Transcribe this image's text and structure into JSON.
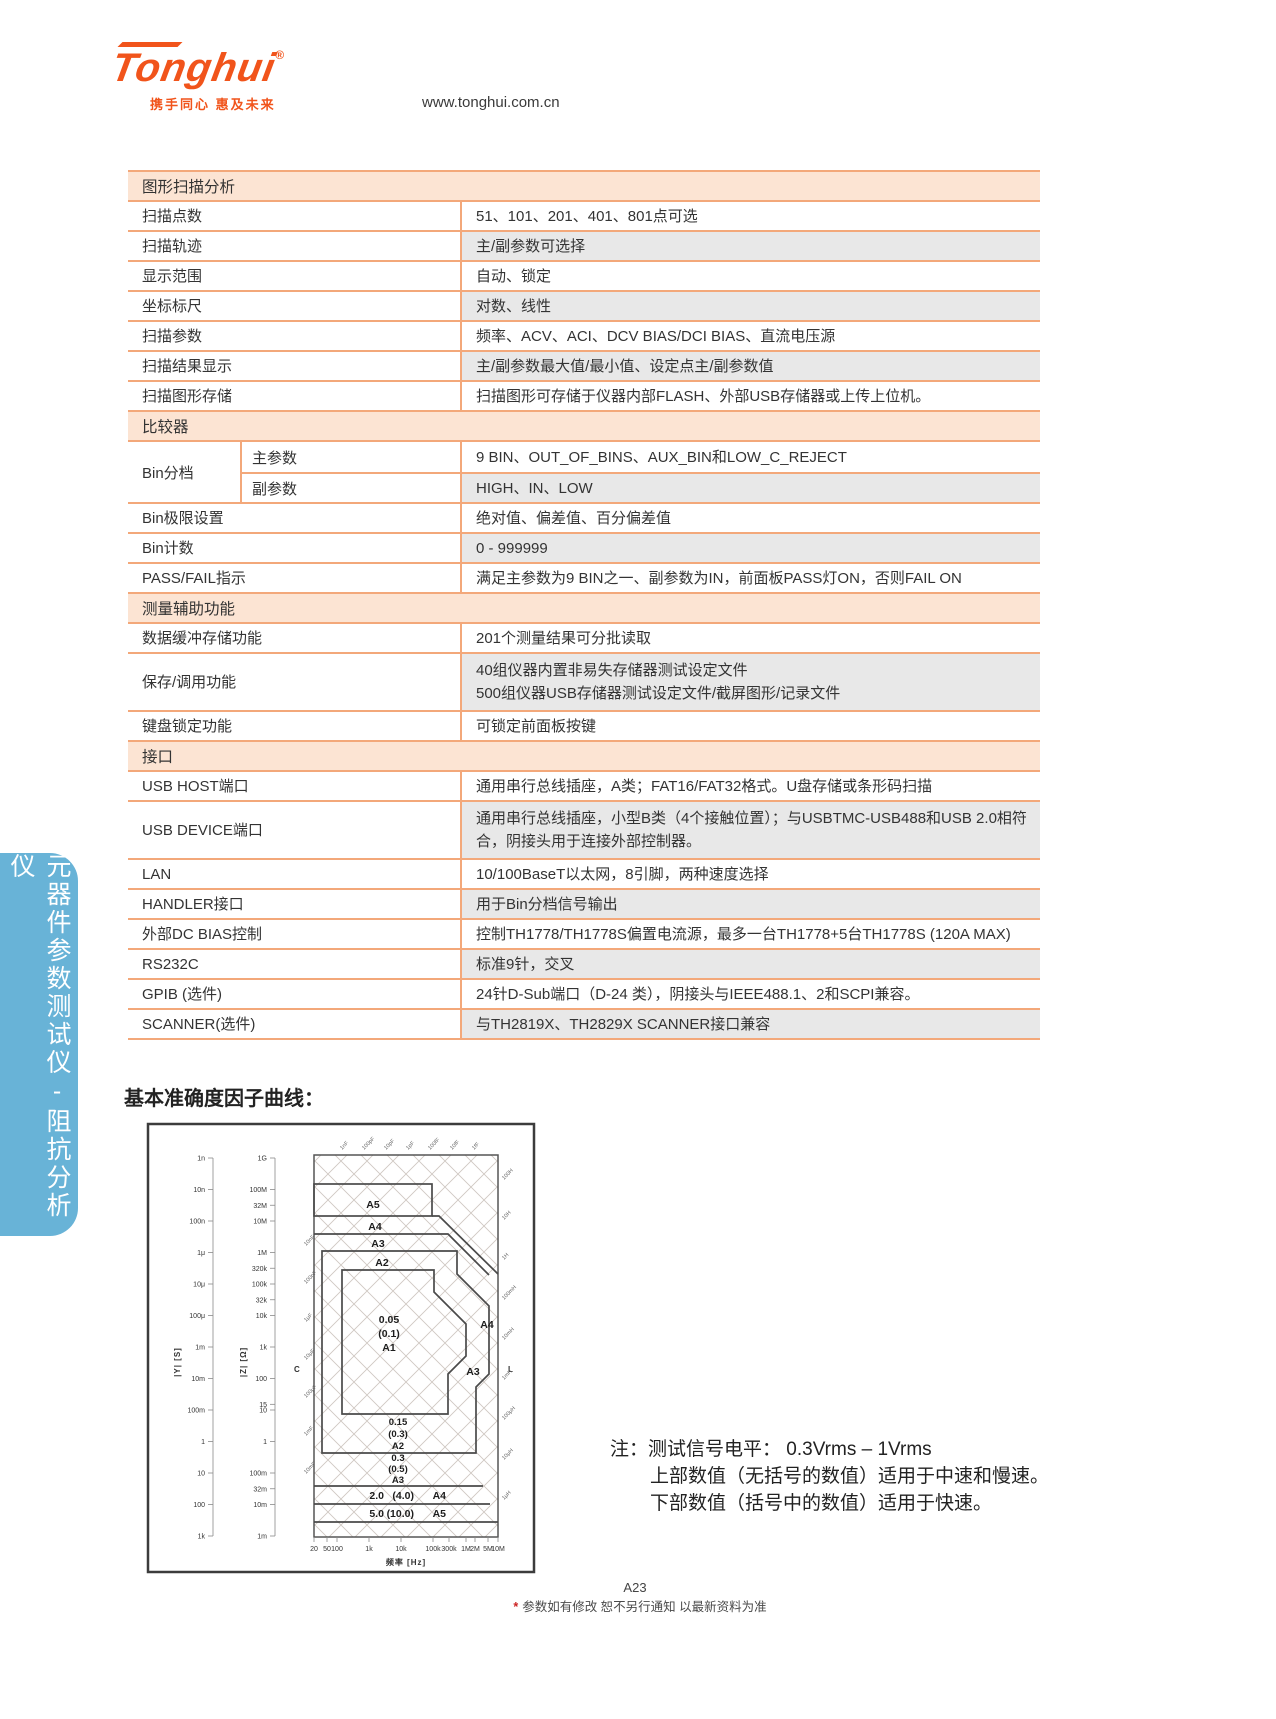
{
  "header": {
    "logo_text": "Tonghui",
    "logo_registered": "®",
    "logo_tagline": "携手同心 惠及未来",
    "website": "www.tonghui.com.cn"
  },
  "sidebar": {
    "vertical_label": "元器件参数测试仪-阻抗分析仪"
  },
  "spec_table": {
    "sections": [
      {
        "title": "图形扫描分析",
        "rows": [
          {
            "label": "扫描点数",
            "value": "51、101、201、401、801点可选"
          },
          {
            "label": "扫描轨迹",
            "value": "主/副参数可选择"
          },
          {
            "label": "显示范围",
            "value": "自动、锁定"
          },
          {
            "label": "坐标标尺",
            "value": "对数、线性"
          },
          {
            "label": "扫描参数",
            "value": "频率、ACV、ACI、DCV BIAS/DCI BIAS、直流电压源"
          },
          {
            "label": "扫描结果显示",
            "value": "主/副参数最大值/最小值、设定点主/副参数值"
          },
          {
            "label": "扫描图形存储",
            "value": "扫描图形可存储于仪器内部FLASH、外部USB存储器或上传上位机。"
          }
        ]
      },
      {
        "title": "比较器",
        "bin_label": "Bin分档",
        "bin_rows": [
          {
            "label": "主参数",
            "value": "9 BIN、OUT_OF_BINS、AUX_BIN和LOW_C_REJECT"
          },
          {
            "label": "副参数",
            "value": "HIGH、IN、LOW"
          }
        ],
        "rows": [
          {
            "label": "Bin极限设置",
            "value": "绝对值、偏差值、百分偏差值"
          },
          {
            "label": "Bin计数",
            "value": "0 - 999999"
          },
          {
            "label": "PASS/FAIL指示",
            "value": "满足主参数为9 BIN之一、副参数为IN，前面板PASS灯ON，否则FAIL ON"
          }
        ]
      },
      {
        "title": "测量辅助功能",
        "rows": [
          {
            "label": "数据缓冲存储功能",
            "value": "201个测量结果可分批读取"
          },
          {
            "label": "保存/调用功能",
            "value": "40组仪器内置非易失存储器测试设定文件",
            "value2": "500组仪器USB存储器测试设定文件/截屏图形/记录文件"
          },
          {
            "label": "键盘锁定功能",
            "value": "可锁定前面板按键"
          }
        ]
      },
      {
        "title": "接口",
        "rows": [
          {
            "label": "USB HOST端口",
            "value": "通用串行总线插座，A类；FAT16/FAT32格式。U盘存储或条形码扫描"
          },
          {
            "label": "USB DEVICE端口",
            "value": "通用串行总线插座，小型B类（4个接触位置）；与USBTMC-USB488和USB 2.0相符合，阴接头用于连接外部控制器。"
          },
          {
            "label": "LAN",
            "value": "10/100BaseT以太网，8引脚，两种速度选择"
          },
          {
            "label": "HANDLER接口",
            "value": "用于Bin分档信号输出"
          },
          {
            "label": "外部DC BIAS控制",
            "value": "控制TH1778/TH1778S偏置电流源，最多一台TH1778+5台TH1778S (120A MAX)"
          },
          {
            "label": "RS232C",
            "value": "标准9针，交叉"
          },
          {
            "label": "GPIB (选件)",
            "value": "24针D-Sub端口（D-24 类），阴接头与IEEE488.1、2和SCPI兼容。"
          },
          {
            "label": "SCANNER(选件)",
            "value": "与TH2819X、TH2829X SCANNER接口兼容"
          }
        ]
      }
    ]
  },
  "chart_data": {
    "type": "area",
    "title": "基本准确度因子曲线：",
    "xlabel": "频率  [Hz]",
    "x_ticks": [
      "20",
      "50",
      "100",
      "1k",
      "10k",
      "100k",
      "300k",
      "1M",
      "2M",
      "5M",
      "10M"
    ],
    "y_axis_admittance": {
      "title": "|Y|  [S]",
      "ticks": [
        "1n",
        "10n",
        "100n",
        "1μ",
        "10μ",
        "100μ",
        "1m",
        "10m",
        "100m",
        "1",
        "10",
        "100",
        "1k"
      ]
    },
    "y_axis_impedance": {
      "title": "|Z|  [Ω]",
      "ticks": [
        "1G",
        "100M",
        "32M",
        "10M",
        "1M",
        "320k",
        "100k",
        "32k",
        "10k",
        "1k",
        "100",
        "15",
        "10",
        "1",
        "100m",
        "32m",
        "10m",
        "1m"
      ]
    },
    "capacitance_label": "C",
    "inductance_label": "L",
    "zones": [
      {
        "name": "A1",
        "accuracy": "0.05",
        "accuracy_fast": "(0.1)"
      },
      {
        "name": "A2",
        "accuracy": "0.15",
        "accuracy_fast": "(0.3)"
      },
      {
        "name": "A3",
        "accuracy": "0.3",
        "accuracy_fast": "(0.5)"
      },
      {
        "name": "A4",
        "accuracy": "2.0",
        "accuracy_fast": "(4.0)"
      },
      {
        "name": "A5",
        "accuracy": "5.0",
        "accuracy_fast": "(10.0)"
      }
    ],
    "capacitance_lines": {
      "top": [
        "1nF",
        "100pF",
        "10pF",
        "1pF",
        "100fF",
        "10fF",
        "1fF"
      ],
      "left": [
        "10nF",
        "100nF",
        "1μF",
        "10μF",
        "100μF",
        "1mF",
        "10mF"
      ]
    },
    "inductance_lines": [
      "100H",
      "10H",
      "1H",
      "100mH",
      "10mH",
      "1mH",
      "100μH",
      "10μH",
      "1μH"
    ],
    "legend_position": "none",
    "grid": "crosshatch"
  },
  "note": {
    "prefix": "注：",
    "line1": "测试信号电平：  0.3Vrms – 1Vrms",
    "line2": "上部数值（无括号的数值）适用于中速和慢速。",
    "line3": "下部数值（括号中的数值）适用于快速。"
  },
  "footer": {
    "page_number": "A23",
    "asterisk": "*",
    "disclaimer": "参数如有修改 恕不另行通知 以最新资料为准"
  },
  "colors": {
    "brand_orange": "#F1541B",
    "table_border_orange": "#F3A87A",
    "section_header_bg": "#FCE4D3",
    "row_alt_gray": "#E8E8E8",
    "sidebar_blue": "#68B3D7"
  }
}
